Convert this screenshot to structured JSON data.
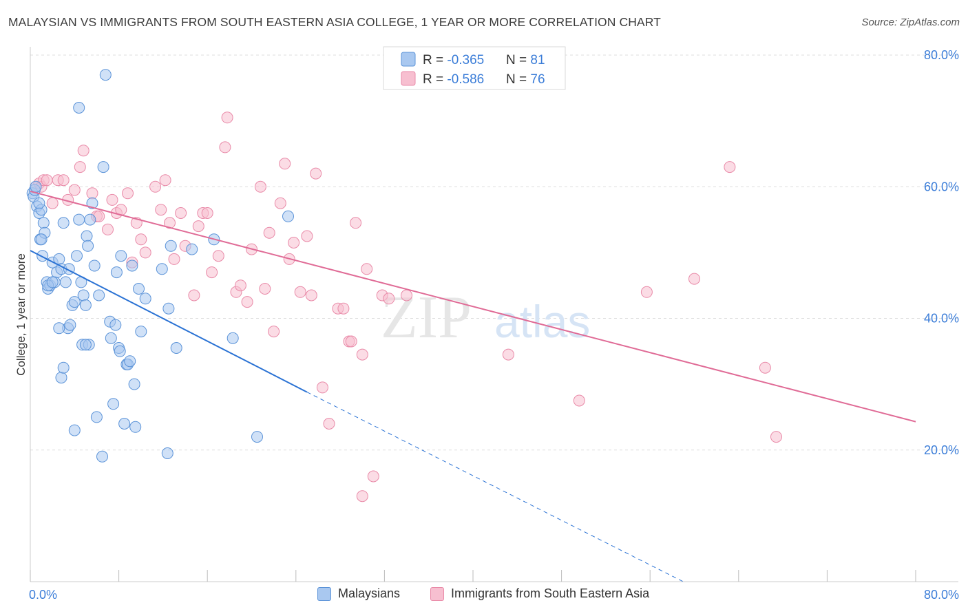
{
  "title": "MALAYSIAN VS IMMIGRANTS FROM SOUTH EASTERN ASIA COLLEGE, 1 YEAR OR MORE CORRELATION CHART",
  "source": "Source: ZipAtlas.com",
  "watermark": {
    "zip": "ZIP",
    "atlas": "atlas"
  },
  "legend_box": [
    {
      "r_label": "R = ",
      "r_value": "-0.365",
      "n_label": "N = ",
      "n_value": "81"
    },
    {
      "r_label": "R = ",
      "r_value": "-0.586",
      "n_label": "N = ",
      "n_value": "76"
    }
  ],
  "bottom_legend": [
    "Malaysians",
    "Immigrants from South Eastern Asia"
  ],
  "colors": {
    "blue_fill": "#a9c8f0",
    "blue_stroke": "#5b93d8",
    "blue_line": "#2a72d4",
    "pink_fill": "#f7bfd0",
    "pink_stroke": "#e98aa8",
    "pink_line": "#e06b96",
    "tick_text": "#3b7dd8",
    "grid": "#dddddd"
  },
  "chart_data": {
    "type": "scatter",
    "xlabel": "",
    "ylabel": "College, 1 year or more",
    "xlim": [
      0,
      0.8
    ],
    "ylim": [
      0,
      0.8
    ],
    "x_tick_labels": [
      "0.0%",
      "80.0%"
    ],
    "y_ticks": [
      {
        "value": 0.2,
        "label": "20.0%"
      },
      {
        "value": 0.4,
        "label": "40.0%"
      },
      {
        "value": 0.6,
        "label": "60.0%"
      },
      {
        "value": 0.8,
        "label": "80.0%"
      }
    ],
    "grid": true,
    "legend": "top-center",
    "series": [
      {
        "name": "Malaysians",
        "points": [
          [
            0.002,
            0.59
          ],
          [
            0.003,
            0.585
          ],
          [
            0.004,
            0.595
          ],
          [
            0.005,
            0.6
          ],
          [
            0.006,
            0.57
          ],
          [
            0.008,
            0.56
          ],
          [
            0.009,
            0.52
          ],
          [
            0.01,
            0.565
          ],
          [
            0.011,
            0.495
          ],
          [
            0.012,
            0.545
          ],
          [
            0.013,
            0.53
          ],
          [
            0.015,
            0.455
          ],
          [
            0.016,
            0.445
          ],
          [
            0.018,
            0.45
          ],
          [
            0.02,
            0.485
          ],
          [
            0.022,
            0.455
          ],
          [
            0.024,
            0.47
          ],
          [
            0.026,
            0.49
          ],
          [
            0.028,
            0.475
          ],
          [
            0.03,
            0.545
          ],
          [
            0.032,
            0.455
          ],
          [
            0.034,
            0.385
          ],
          [
            0.036,
            0.39
          ],
          [
            0.038,
            0.42
          ],
          [
            0.04,
            0.425
          ],
          [
            0.042,
            0.495
          ],
          [
            0.044,
            0.55
          ],
          [
            0.046,
            0.455
          ],
          [
            0.047,
            0.36
          ],
          [
            0.048,
            0.435
          ],
          [
            0.05,
            0.42
          ],
          [
            0.051,
            0.525
          ],
          [
            0.052,
            0.51
          ],
          [
            0.053,
            0.36
          ],
          [
            0.054,
            0.55
          ],
          [
            0.056,
            0.575
          ],
          [
            0.058,
            0.48
          ],
          [
            0.06,
            0.25
          ],
          [
            0.062,
            0.435
          ],
          [
            0.065,
            0.19
          ],
          [
            0.066,
            0.63
          ],
          [
            0.068,
            0.77
          ],
          [
            0.072,
            0.395
          ],
          [
            0.073,
            0.37
          ],
          [
            0.075,
            0.27
          ],
          [
            0.077,
            0.39
          ],
          [
            0.078,
            0.47
          ],
          [
            0.08,
            0.355
          ],
          [
            0.081,
            0.35
          ],
          [
            0.082,
            0.495
          ],
          [
            0.085,
            0.24
          ],
          [
            0.087,
            0.33
          ],
          [
            0.088,
            0.33
          ],
          [
            0.09,
            0.335
          ],
          [
            0.092,
            0.48
          ],
          [
            0.094,
            0.3
          ],
          [
            0.095,
            0.235
          ],
          [
            0.098,
            0.445
          ],
          [
            0.1,
            0.38
          ],
          [
            0.104,
            0.43
          ],
          [
            0.119,
            0.475
          ],
          [
            0.124,
            0.195
          ],
          [
            0.125,
            0.415
          ],
          [
            0.127,
            0.51
          ],
          [
            0.132,
            0.355
          ],
          [
            0.146,
            0.505
          ],
          [
            0.166,
            0.52
          ],
          [
            0.183,
            0.37
          ],
          [
            0.205,
            0.22
          ],
          [
            0.233,
            0.555
          ],
          [
            0.044,
            0.72
          ],
          [
            0.028,
            0.31
          ],
          [
            0.03,
            0.325
          ],
          [
            0.026,
            0.385
          ],
          [
            0.04,
            0.23
          ],
          [
            0.016,
            0.45
          ],
          [
            0.01,
            0.52
          ],
          [
            0.02,
            0.455
          ],
          [
            0.008,
            0.575
          ],
          [
            0.05,
            0.36
          ],
          [
            0.035,
            0.475
          ]
        ]
      },
      {
        "name": "Immigrants from South Eastern Asia",
        "points": [
          [
            0.005,
            0.6
          ],
          [
            0.008,
            0.605
          ],
          [
            0.01,
            0.6
          ],
          [
            0.012,
            0.61
          ],
          [
            0.015,
            0.61
          ],
          [
            0.02,
            0.575
          ],
          [
            0.025,
            0.61
          ],
          [
            0.03,
            0.61
          ],
          [
            0.034,
            0.58
          ],
          [
            0.04,
            0.595
          ],
          [
            0.045,
            0.63
          ],
          [
            0.048,
            0.655
          ],
          [
            0.056,
            0.59
          ],
          [
            0.06,
            0.555
          ],
          [
            0.062,
            0.555
          ],
          [
            0.07,
            0.535
          ],
          [
            0.074,
            0.58
          ],
          [
            0.078,
            0.56
          ],
          [
            0.082,
            0.565
          ],
          [
            0.088,
            0.59
          ],
          [
            0.092,
            0.485
          ],
          [
            0.096,
            0.545
          ],
          [
            0.1,
            0.52
          ],
          [
            0.104,
            0.5
          ],
          [
            0.113,
            0.6
          ],
          [
            0.118,
            0.565
          ],
          [
            0.122,
            0.61
          ],
          [
            0.126,
            0.545
          ],
          [
            0.13,
            0.49
          ],
          [
            0.136,
            0.56
          ],
          [
            0.14,
            0.51
          ],
          [
            0.148,
            0.435
          ],
          [
            0.152,
            0.54
          ],
          [
            0.156,
            0.56
          ],
          [
            0.16,
            0.56
          ],
          [
            0.164,
            0.47
          ],
          [
            0.17,
            0.495
          ],
          [
            0.176,
            0.66
          ],
          [
            0.178,
            0.705
          ],
          [
            0.186,
            0.44
          ],
          [
            0.19,
            0.45
          ],
          [
            0.196,
            0.425
          ],
          [
            0.2,
            0.505
          ],
          [
            0.208,
            0.6
          ],
          [
            0.212,
            0.445
          ],
          [
            0.216,
            0.53
          ],
          [
            0.22,
            0.38
          ],
          [
            0.226,
            0.575
          ],
          [
            0.23,
            0.635
          ],
          [
            0.234,
            0.49
          ],
          [
            0.238,
            0.515
          ],
          [
            0.244,
            0.44
          ],
          [
            0.25,
            0.525
          ],
          [
            0.254,
            0.435
          ],
          [
            0.258,
            0.62
          ],
          [
            0.264,
            0.295
          ],
          [
            0.27,
            0.24
          ],
          [
            0.278,
            0.415
          ],
          [
            0.283,
            0.415
          ],
          [
            0.288,
            0.365
          ],
          [
            0.294,
            0.545
          ],
          [
            0.3,
            0.345
          ],
          [
            0.304,
            0.475
          ],
          [
            0.31,
            0.16
          ],
          [
            0.318,
            0.435
          ],
          [
            0.324,
            0.43
          ],
          [
            0.34,
            0.435
          ],
          [
            0.432,
            0.345
          ],
          [
            0.496,
            0.275
          ],
          [
            0.557,
            0.44
          ],
          [
            0.6,
            0.46
          ],
          [
            0.632,
            0.63
          ],
          [
            0.664,
            0.325
          ],
          [
            0.674,
            0.22
          ],
          [
            0.3,
            0.13
          ],
          [
            0.29,
            0.365
          ]
        ]
      }
    ],
    "trend_lines": [
      {
        "series": "Malaysians",
        "x0": 0.0,
        "y0": 0.503,
        "x1": 0.25,
        "y1": 0.288,
        "dashed_to_x": 0.59,
        "dashed_to_y": 0.0
      },
      {
        "series": "Immigrants from South Eastern Asia",
        "x0": 0.0,
        "y0": 0.593,
        "x1": 0.8,
        "y1": 0.243
      }
    ]
  }
}
